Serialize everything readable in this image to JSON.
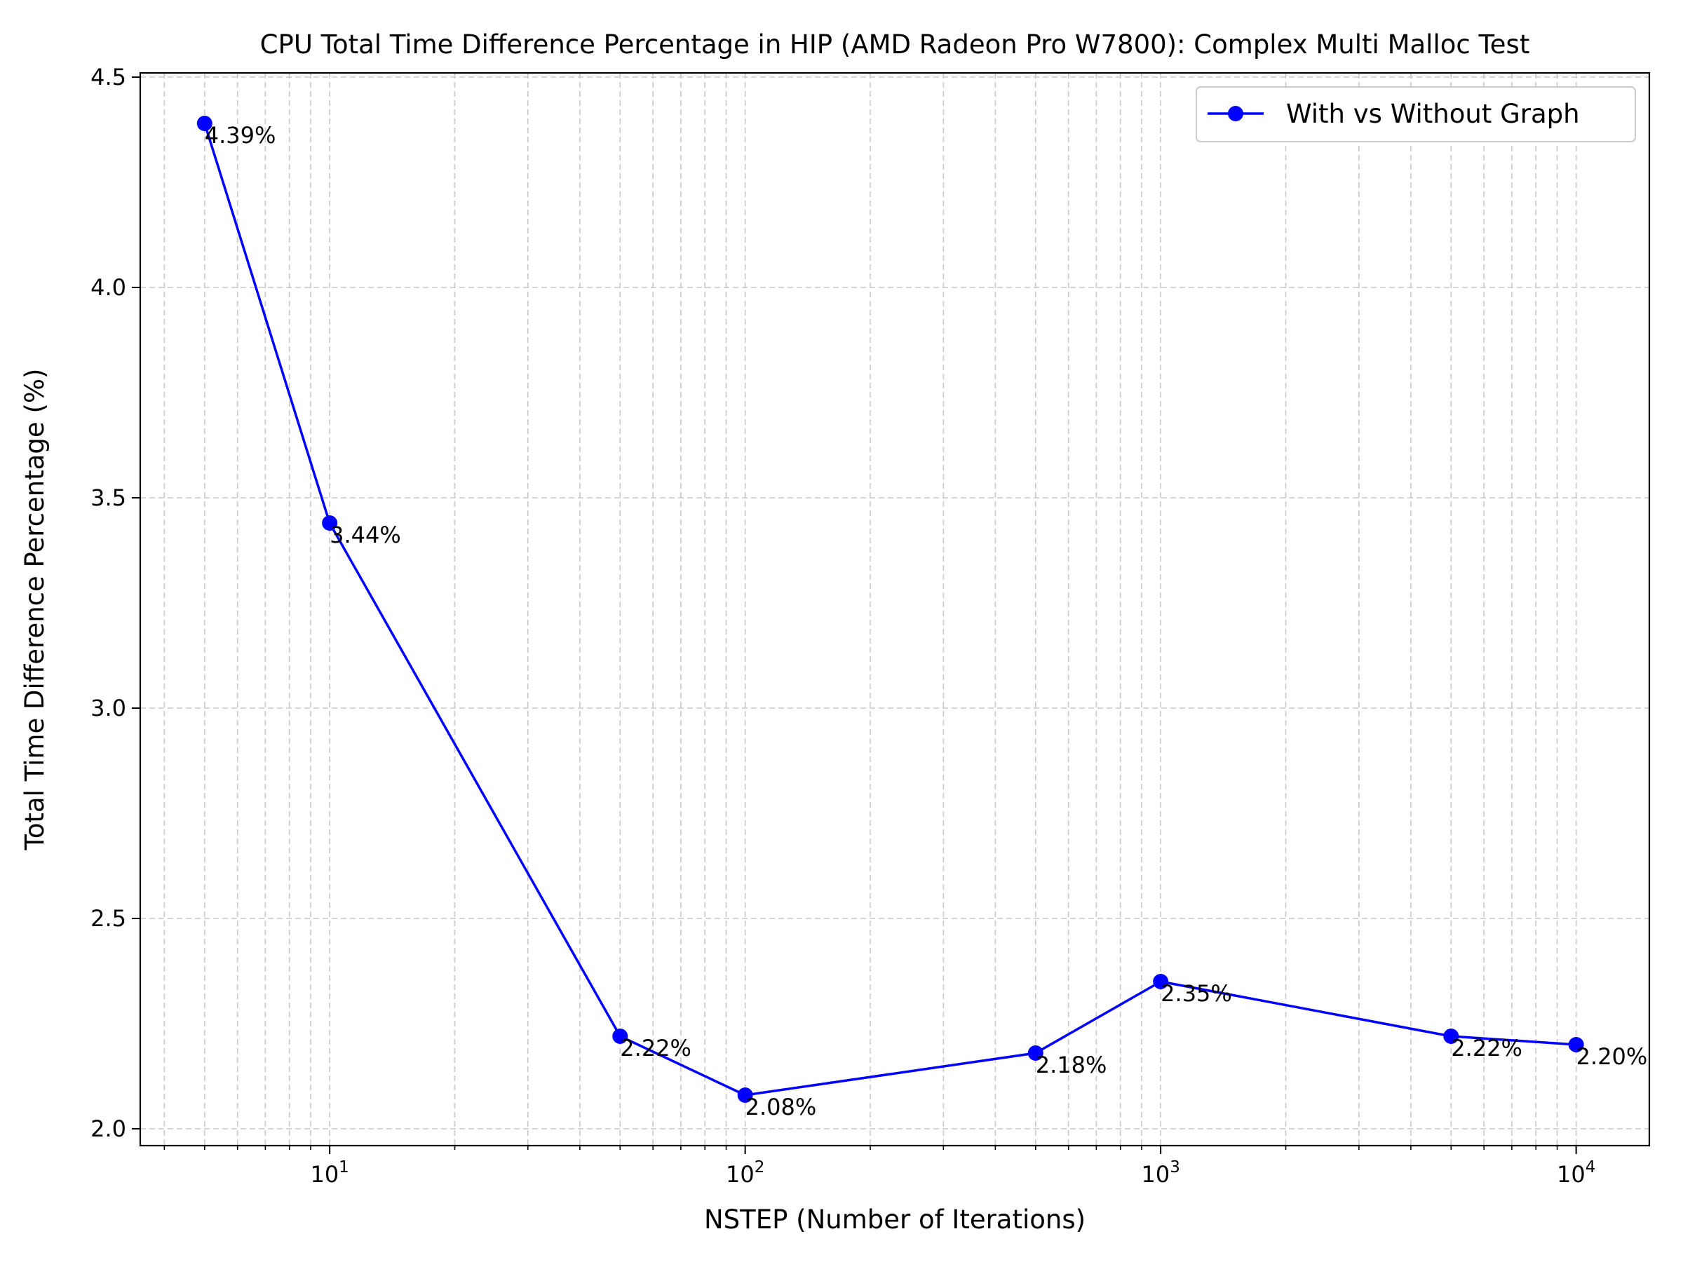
{
  "chart_data": {
    "type": "line",
    "title": "CPU Total Time Difference Percentage in HIP (AMD Radeon Pro W7800): Complex Multi Malloc Test",
    "xlabel": "NSTEP (Number of Iterations)",
    "ylabel": "Total Time Difference Percentage (%)",
    "x_scale": "log",
    "xlim": [
      3.5,
      15000
    ],
    "ylim": [
      1.96,
      4.51
    ],
    "x_ticks": [
      {
        "value": 10,
        "base": "10",
        "exp": "1"
      },
      {
        "value": 100,
        "base": "10",
        "exp": "2"
      },
      {
        "value": 1000,
        "base": "10",
        "exp": "3"
      },
      {
        "value": 10000,
        "base": "10",
        "exp": "4"
      }
    ],
    "y_ticks": [
      {
        "value": 2.0,
        "label": "2.0"
      },
      {
        "value": 2.5,
        "label": "2.5"
      },
      {
        "value": 3.0,
        "label": "3.0"
      },
      {
        "value": 3.5,
        "label": "3.5"
      },
      {
        "value": 4.0,
        "label": "4.0"
      },
      {
        "value": 4.5,
        "label": "4.5"
      }
    ],
    "grid": true,
    "legend_position": "top-right",
    "series": [
      {
        "name": "With vs Without Graph",
        "color": "#0000ff",
        "marker": "circle",
        "x": [
          5,
          10,
          50,
          100,
          500,
          1000,
          5000,
          10000
        ],
        "y": [
          4.39,
          3.44,
          2.22,
          2.08,
          2.18,
          2.35,
          2.22,
          2.2
        ],
        "labels": [
          "4.39%",
          "3.44%",
          "2.22%",
          "2.08%",
          "2.18%",
          "2.35%",
          "2.22%",
          "2.20%"
        ]
      }
    ]
  }
}
